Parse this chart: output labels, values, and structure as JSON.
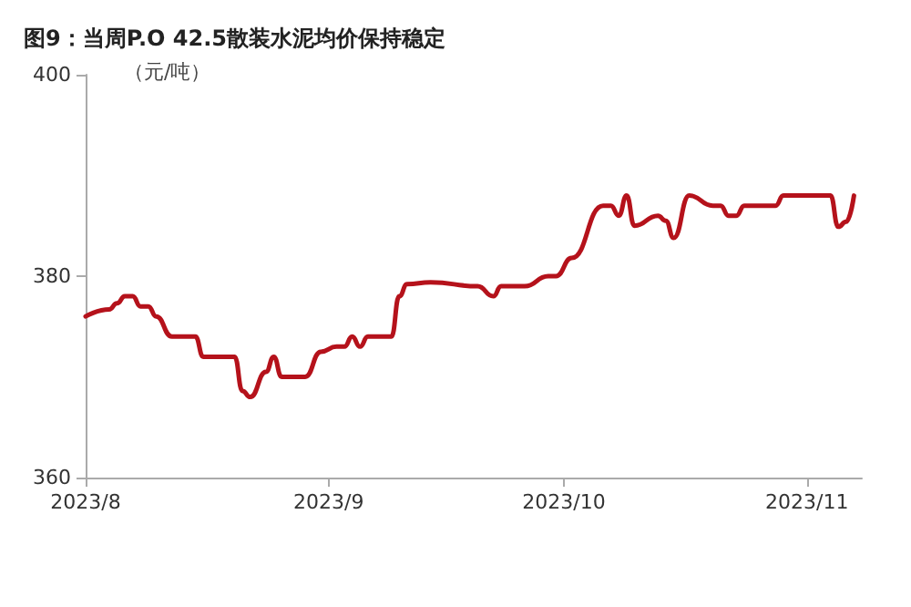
{
  "chart_data": {
    "type": "line",
    "title": "图9：当周P.O 42.5散装水泥均价保持稳定",
    "ylabel": "（元/吨）",
    "x": [
      "2023-08-01",
      "2023-08-04",
      "2023-08-05",
      "2023-08-06",
      "2023-08-07",
      "2023-08-08",
      "2023-08-09",
      "2023-08-10",
      "2023-08-12",
      "2023-08-15",
      "2023-08-16",
      "2023-08-20",
      "2023-08-21",
      "2023-08-22",
      "2023-08-24",
      "2023-08-25",
      "2023-08-26",
      "2023-08-29",
      "2023-08-31",
      "2023-09-02",
      "2023-09-03",
      "2023-09-04",
      "2023-09-05",
      "2023-09-06",
      "2023-09-09",
      "2023-09-10",
      "2023-09-11",
      "2023-09-14",
      "2023-09-20",
      "2023-09-22",
      "2023-09-23",
      "2023-09-26",
      "2023-09-29",
      "2023-09-30",
      "2023-10-02",
      "2023-10-06",
      "2023-10-07",
      "2023-10-08",
      "2023-10-09",
      "2023-10-10",
      "2023-10-13",
      "2023-10-14",
      "2023-10-15",
      "2023-10-17",
      "2023-10-20",
      "2023-10-21",
      "2023-10-22",
      "2023-10-23",
      "2023-10-24",
      "2023-10-28",
      "2023-10-29",
      "2023-11-04",
      "2023-11-05",
      "2023-11-06",
      "2023-11-07"
    ],
    "series": [
      {
        "color": "#b5121b",
        "values": [
          376,
          376.7,
          377.3,
          378,
          378,
          377,
          377,
          376,
          374,
          374,
          372,
          372,
          368.6,
          368,
          370.5,
          372,
          370,
          370,
          372.5,
          373,
          373,
          374,
          373,
          374,
          374,
          378,
          379.2,
          379.4,
          379,
          378,
          379,
          379,
          380,
          380,
          381.8,
          387,
          387,
          386,
          388,
          385,
          386,
          385.5,
          383.8,
          388,
          387,
          387,
          386,
          386,
          387,
          387,
          388,
          388,
          384.9,
          385.4,
          388
        ]
      }
    ],
    "xlim": [
      "2023-08-01",
      "2023-11-08"
    ],
    "xticks": [
      {
        "value": "2023-08",
        "label": "2023/8"
      },
      {
        "value": "2023-09",
        "label": "2023/9"
      },
      {
        "value": "2023-10",
        "label": "2023/10"
      },
      {
        "value": "2023-11",
        "label": "2023/11"
      }
    ],
    "ylim": [
      360,
      400
    ],
    "yticks": [
      360,
      380,
      400
    ],
    "grid": false,
    "marker": "none",
    "line_style": "solid"
  }
}
